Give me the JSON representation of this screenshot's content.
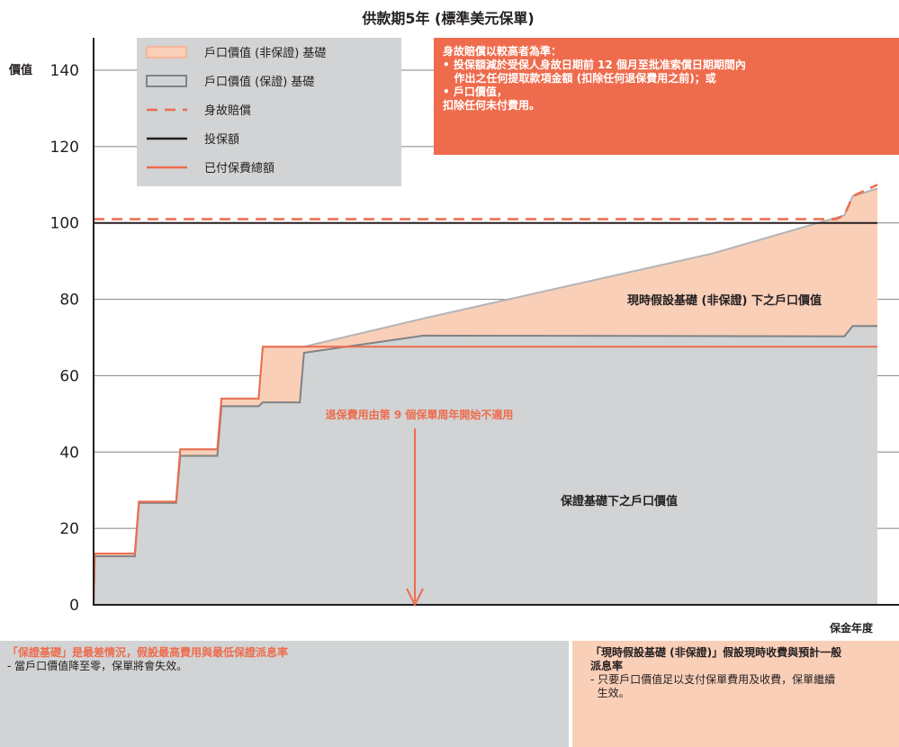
{
  "chart_data": {
    "type": "area",
    "title": "供款期5年 (標準美元保單)",
    "ylabel": "價值",
    "xlabel": "保金年度",
    "ylim": [
      0,
      150
    ],
    "yticks": [
      0,
      20,
      40,
      60,
      80,
      100,
      120,
      140
    ],
    "grid": true,
    "legend_placement": "top-left",
    "legend": [
      {
        "label": "戶口價值 (非保證) 基礎",
        "color": "#f9cfb8",
        "style": "fill"
      },
      {
        "label": "戶口價值 (保證) 基礎",
        "color": "#d1d3d4",
        "style": "fill"
      },
      {
        "label": "身故賠償",
        "color": "#ee6c4d",
        "style": "dashed"
      },
      {
        "label": "投保額",
        "color": "#231f20",
        "style": "solid"
      },
      {
        "label": "已付保費總額",
        "color": "#ee6c4d",
        "style": "solid"
      }
    ],
    "series": [
      {
        "name": "戶口價值 (非保證) 基礎",
        "x": [
          0,
          0.03,
          1,
          1.1,
          2,
          2.1,
          3,
          3.1,
          4,
          4.1,
          5,
          5.1,
          8,
          15,
          18.2,
          18.4,
          19
        ],
        "y": [
          0,
          13.4,
          13.4,
          27,
          27,
          40.7,
          40.7,
          54,
          54,
          67.6,
          67.6,
          67.6,
          75,
          92,
          102,
          107,
          109
        ]
      },
      {
        "name": "戶口價值 (保證) 基礎",
        "x": [
          0,
          0.03,
          1,
          1.1,
          2,
          2.1,
          3,
          3.1,
          4,
          4.1,
          5,
          5.1,
          8,
          18.2,
          18.4,
          19
        ],
        "y": [
          0,
          12.7,
          12.7,
          26.7,
          26.7,
          39,
          39,
          52,
          52,
          53,
          53,
          66,
          70.5,
          70.3,
          73,
          73
        ]
      },
      {
        "name": "身故賠償",
        "x": [
          0,
          18,
          18.2,
          18.4,
          19
        ],
        "y": [
          101,
          101,
          102,
          107,
          110
        ]
      },
      {
        "name": "投保額",
        "x": [
          0,
          19
        ],
        "y": [
          100,
          100
        ]
      },
      {
        "name": "已付保費總額",
        "x": [
          0,
          0.03,
          1,
          1.1,
          2,
          2.1,
          3,
          3.1,
          4,
          4.1,
          5,
          19
        ],
        "y": [
          0,
          13.4,
          13.4,
          27,
          27,
          40.7,
          40.7,
          54,
          54,
          67.6,
          67.6,
          67.6
        ]
      }
    ],
    "annotations": [
      {
        "id": "non_guaranteed_label",
        "text": "現時假設基礎 (非保證) 下之戶口價值"
      },
      {
        "id": "guaranteed_label",
        "text": "保證基礎下之戶口價值"
      },
      {
        "id": "surrender_label",
        "text": "退保費用由第 9 個保單周年開始不適用",
        "x": 9
      }
    ]
  },
  "callout": {
    "text": "身故賠償以較高者為準：\n• 投保額減於受保人身故日期前 12 個月至批准索償日期期間內\n   作出之任何提取款項金額 (扣除任何退保費用之前)；或\n• 戶口價值，\n扣除任何未付費用。"
  },
  "notes": {
    "left_title": "「保證基礎」是最差情況，假設最高費用與最低保證派息率",
    "left_body": "- 當戶口價值降至零，保單將會失效。",
    "right_title": "「現時假設基礎 (非保證)」假設現時收費與預計一般",
    "right_title2": "派息率",
    "right_body": "- 只要戶口價值足以支付保單費用及收費，保單繼續\n  生效。"
  },
  "colors": {
    "nonguaranteed_fill": "#f9cfb8",
    "guaranteed_fill": "#d1d3d4",
    "accent": "#ee6c4d",
    "dark": "#231f20",
    "grid": "#808285"
  }
}
